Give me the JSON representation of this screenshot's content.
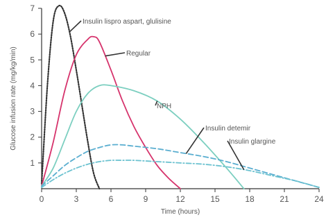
{
  "chart_data": {
    "type": "line",
    "title": "",
    "xlabel": "Time (hours)",
    "ylabel": "Glucose infusion rate (mg/kg/min)",
    "xlim": [
      0,
      24
    ],
    "ylim": [
      0,
      7
    ],
    "x_ticks": [
      "0",
      "3",
      "6",
      "9",
      "12",
      "15",
      "18",
      "21",
      "24"
    ],
    "y_ticks": [
      "1",
      "2",
      "3",
      "4",
      "5",
      "6",
      "7"
    ],
    "grid": false,
    "series": [
      {
        "name": "Insulin lispro aspart, glulisine",
        "color": "#333333",
        "style": "dotted",
        "x": [
          0,
          0.5,
          1,
          1.5,
          2,
          2.5,
          3,
          3.5,
          4,
          4.5,
          5
        ],
        "y": [
          0.2,
          4.0,
          6.5,
          7.1,
          6.8,
          5.9,
          4.6,
          3.2,
          1.8,
          0.6,
          0
        ]
      },
      {
        "name": "Regular",
        "color": "#d6336c",
        "style": "solid",
        "x": [
          0,
          1,
          2,
          3,
          4,
          4.5,
          5,
          6,
          7,
          8,
          9,
          10,
          11,
          12
        ],
        "y": [
          0.1,
          1.8,
          3.8,
          5.2,
          5.8,
          5.9,
          5.7,
          4.6,
          3.4,
          2.4,
          1.6,
          0.9,
          0.4,
          0
        ]
      },
      {
        "name": "NPH",
        "color": "#7ccfc0",
        "style": "solid",
        "x": [
          0,
          1,
          2,
          3,
          4,
          5,
          6,
          8,
          10,
          12,
          14,
          16,
          17.5
        ],
        "y": [
          0.1,
          0.8,
          1.9,
          3.0,
          3.7,
          4.0,
          4.0,
          3.8,
          3.4,
          2.7,
          1.8,
          0.8,
          0
        ]
      },
      {
        "name": "Insulin detemir",
        "color": "#5aaed0",
        "style": "dashed",
        "x": [
          0,
          1,
          2,
          3,
          4,
          5,
          6,
          7,
          8,
          10,
          12,
          14,
          16,
          18,
          20,
          22,
          24
        ],
        "y": [
          0.1,
          0.5,
          0.9,
          1.2,
          1.45,
          1.6,
          1.7,
          1.7,
          1.65,
          1.55,
          1.4,
          1.25,
          1.05,
          0.8,
          0.55,
          0.3,
          0.05
        ]
      },
      {
        "name": "Insulin glargine",
        "color": "#6cc2d0",
        "style": "dashdot",
        "x": [
          0,
          1,
          2,
          3,
          4,
          5,
          6,
          7,
          8,
          10,
          12,
          14,
          16,
          18,
          20,
          22,
          24
        ],
        "y": [
          0.05,
          0.35,
          0.6,
          0.8,
          0.95,
          1.05,
          1.1,
          1.1,
          1.1,
          1.05,
          1.0,
          0.95,
          0.85,
          0.7,
          0.5,
          0.3,
          0.05
        ]
      }
    ],
    "annotations": [
      {
        "text": "Insulin lispro aspart, glulisine",
        "series": 0,
        "at_x": 2.4
      },
      {
        "text": "Regular",
        "series": 1,
        "at_x": 5.5
      },
      {
        "text": "NPH",
        "series": 2,
        "at_x": 10
      },
      {
        "text": "Insulin detemir",
        "series": 3,
        "at_x": 12.5
      },
      {
        "text": "Insulin glargine",
        "series": 4,
        "at_x": 17.5
      }
    ]
  }
}
